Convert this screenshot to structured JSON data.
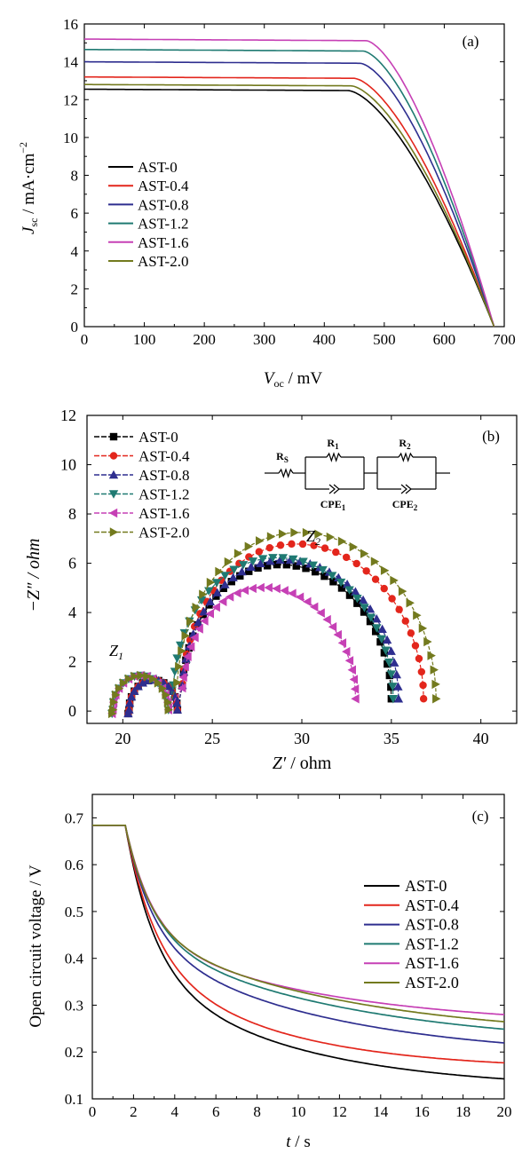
{
  "colors": {
    "AST-0": "#000000",
    "AST-0.4": "#e3261c",
    "AST-0.8": "#2e2e8f",
    "AST-1.2": "#1f7a72",
    "AST-1.6": "#c640b5",
    "AST-2.0": "#737a1e"
  },
  "chart_data": [
    {
      "panel": "a",
      "panel_label": "(a)",
      "type": "line",
      "xlabel_main": "V",
      "xlabel_sub": "oc",
      "xlabel_unit": " / mV",
      "ylabel_main": "J",
      "ylabel_sub": "sc",
      "ylabel_unit": " / mA·cm",
      "ylabel_sup": "−2",
      "xlim": [
        0,
        700
      ],
      "ylim": [
        0,
        16
      ],
      "xticks": [
        "0",
        "100",
        "200",
        "300",
        "400",
        "500",
        "600",
        "700"
      ],
      "yticks": [
        "0",
        "2",
        "4",
        "6",
        "8",
        "10",
        "12",
        "14",
        "16"
      ],
      "legend_position": "middle-left",
      "series": [
        {
          "name": "AST-0",
          "Jsc": 12.55,
          "Voc": 683,
          "knee": 440
        },
        {
          "name": "AST-0.4",
          "Jsc": 13.2,
          "Voc": 683,
          "knee": 450
        },
        {
          "name": "AST-0.8",
          "Jsc": 14.0,
          "Voc": 683,
          "knee": 460
        },
        {
          "name": "AST-1.2",
          "Jsc": 14.65,
          "Voc": 683,
          "knee": 465
        },
        {
          "name": "AST-1.6",
          "Jsc": 15.2,
          "Voc": 683,
          "knee": 470
        },
        {
          "name": "AST-2.0",
          "Jsc": 12.8,
          "Voc": 683,
          "knee": 445
        }
      ]
    },
    {
      "panel": "b",
      "panel_label": "(b)",
      "type": "scatter",
      "xlabel_main": "Z′",
      "xlabel_unit": " / ohm",
      "ylabel": "−Z″ / ohm",
      "xlim": [
        18,
        42
      ],
      "ylim": [
        -0.5,
        12
      ],
      "xticks": [
        "20",
        "25",
        "30",
        "35",
        "40"
      ],
      "yticks": [
        "0",
        "2",
        "4",
        "6",
        "8",
        "10",
        "12"
      ],
      "legend_position": "top-left",
      "annotations": [
        "Z",
        "1",
        "Z",
        "2"
      ],
      "circuit_labels": [
        "R",
        "S",
        "R",
        "1",
        "R",
        "2",
        "CPE",
        "1",
        "CPE",
        "2"
      ],
      "series": [
        {
          "name": "AST-0",
          "marker": "square",
          "R0": 20.3,
          "c1": 21.7,
          "r1": 1.35,
          "c2": 29.15,
          "r2": 5.85
        },
        {
          "name": "AST-0.4",
          "marker": "circle",
          "R0": 20.3,
          "c1": 21.7,
          "r1": 1.35,
          "c2": 30.05,
          "r2": 6.75
        },
        {
          "name": "AST-0.8",
          "marker": "triangle-up",
          "R0": 20.3,
          "c1": 21.7,
          "r1": 1.35,
          "c2": 29.35,
          "r2": 6.05
        },
        {
          "name": "AST-1.2",
          "marker": "triangle-down",
          "R0": 19.4,
          "c1": 21.0,
          "r1": 1.55,
          "c2": 28.95,
          "r2": 6.15
        },
        {
          "name": "AST-1.6",
          "marker": "triangle-left",
          "R0": 19.4,
          "c1": 21.0,
          "r1": 1.55,
          "c2": 28.15,
          "r2": 4.85
        },
        {
          "name": "AST-2.0",
          "marker": "triangle-right",
          "R0": 19.4,
          "c1": 21.0,
          "r1": 1.55,
          "c2": 30.25,
          "r2": 7.25
        }
      ]
    },
    {
      "panel": "c",
      "panel_label": "(c)",
      "type": "line",
      "xlabel_main": "t",
      "xlabel_unit": " / s",
      "ylabel": "Open circuit  voltage / V",
      "xlim": [
        0,
        20
      ],
      "ylim": [
        0.1,
        0.75
      ],
      "xticks": [
        "0",
        "2",
        "4",
        "6",
        "8",
        "10",
        "12",
        "14",
        "16",
        "18",
        "20"
      ],
      "yticks": [
        "0.1",
        "0.2",
        "0.3",
        "0.4",
        "0.5",
        "0.6",
        "0.7"
      ],
      "legend_position": "top-right",
      "series": [
        {
          "name": "AST-0",
          "V0": 0.684,
          "t0": 1.6,
          "a1": 0.3,
          "tau1": 1.4,
          "a2": 0.264,
          "tau2": 7.5
        },
        {
          "name": "AST-0.4",
          "V0": 0.684,
          "t0": 1.6,
          "a1": 0.27,
          "tau1": 1.4,
          "a2": 0.252,
          "tau2": 6.5
        },
        {
          "name": "AST-0.8",
          "V0": 0.684,
          "t0": 1.6,
          "a1": 0.24,
          "tau1": 1.3,
          "a2": 0.258,
          "tau2": 9.0
        },
        {
          "name": "AST-1.2",
          "V0": 0.684,
          "t0": 1.6,
          "a1": 0.23,
          "tau1": 1.3,
          "a2": 0.244,
          "tau2": 10.0
        },
        {
          "name": "AST-1.6",
          "V0": 0.684,
          "t0": 1.6,
          "a1": 0.23,
          "tau1": 1.3,
          "a2": 0.2,
          "tau2": 9.0
        },
        {
          "name": "AST-2.0",
          "V0": 0.684,
          "t0": 1.6,
          "a1": 0.22,
          "tau1": 1.2,
          "a2": 0.237,
          "tau2": 10.0
        }
      ]
    }
  ]
}
